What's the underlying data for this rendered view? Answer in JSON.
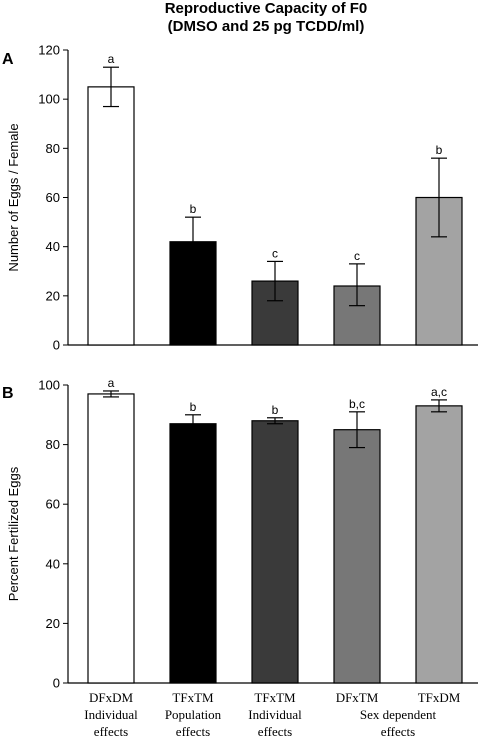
{
  "chart_data": {
    "type": "bar",
    "title_lines": [
      "Reproductive Capacity of F0",
      "(DMSO and 25 pg TCDD/ml)"
    ],
    "categories": [
      "DFxDM",
      "TFxTM",
      "TFxTM",
      "DFxTM",
      "TFxDM"
    ],
    "group_labels": [
      {
        "lines": [
          "Individual",
          "effects"
        ]
      },
      {
        "lines": [
          "Population",
          "effects"
        ]
      },
      {
        "lines": [
          "Individual",
          "effects"
        ]
      },
      {
        "lines": [
          "Sex dependent",
          "effects"
        ]
      }
    ],
    "bar_colors": [
      "#ffffff",
      "#000000",
      "#3a3a3a",
      "#777777",
      "#a3a3a3"
    ],
    "panels": [
      {
        "letter": "A",
        "ylabel": "Number of Eggs / Female",
        "ylim": [
          0,
          120
        ],
        "yticks": [
          0,
          20,
          40,
          60,
          80,
          100,
          120
        ],
        "values": [
          105,
          42,
          26,
          24,
          60
        ],
        "err_low": [
          97,
          33,
          18,
          16,
          44
        ],
        "err_high": [
          113,
          52,
          34,
          33,
          76
        ],
        "labels": [
          "a",
          "b",
          "c",
          "c",
          "b"
        ]
      },
      {
        "letter": "B",
        "ylabel": "Percent Fertilized Eggs",
        "ylim": [
          0,
          100
        ],
        "yticks": [
          0,
          20,
          40,
          60,
          80,
          100
        ],
        "values": [
          97,
          87,
          88,
          85,
          93
        ],
        "err_low": [
          96,
          84,
          87,
          79,
          91
        ],
        "err_high": [
          98,
          90,
          89,
          91,
          95
        ],
        "labels": [
          "a",
          "b",
          "b",
          "b,c",
          "a,c"
        ]
      }
    ]
  }
}
